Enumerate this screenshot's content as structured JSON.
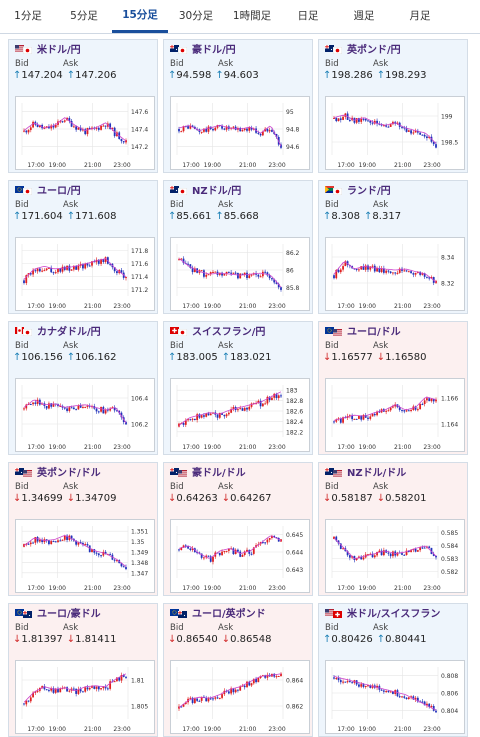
{
  "tabs": [
    {
      "label": "1分足",
      "active": false
    },
    {
      "label": "5分足",
      "active": false
    },
    {
      "label": "15分足",
      "active": true
    },
    {
      "label": "30分足",
      "active": false
    },
    {
      "label": "1時間足",
      "active": false
    },
    {
      "label": "日足",
      "active": false
    },
    {
      "label": "週足",
      "active": false
    },
    {
      "label": "月足",
      "active": false
    }
  ],
  "labels": {
    "bid": "Bid",
    "ask": "Ask"
  },
  "x_ticks": [
    "17:00",
    "19:00",
    "21:00",
    "23:00"
  ],
  "colors": {
    "up": "#1a7fb5",
    "down": "#d12b2b",
    "bull": "#e02020",
    "bear": "#2233bb",
    "ma": "#cc44cc"
  },
  "cards": [
    {
      "pair": "米ドル/円",
      "flag": "us-jp",
      "dir": "up",
      "bid": "147.204",
      "ask": "147.206",
      "yticks": [
        "147.6",
        "147.4",
        "147.2"
      ]
    },
    {
      "pair": "豪ドル/円",
      "flag": "au-jp",
      "dir": "up",
      "bid": "94.598",
      "ask": "94.603",
      "yticks": [
        "95",
        "94.8",
        "94.6"
      ]
    },
    {
      "pair": "英ポンド/円",
      "flag": "gb-jp",
      "dir": "up",
      "bid": "198.286",
      "ask": "198.293",
      "yticks": [
        "199",
        "198.5"
      ]
    },
    {
      "pair": "ユーロ/円",
      "flag": "eu-jp",
      "dir": "up",
      "bid": "171.604",
      "ask": "171.608",
      "yticks": [
        "171.8",
        "171.6",
        "171.4",
        "171.2"
      ]
    },
    {
      "pair": "NZドル/円",
      "flag": "nz-jp",
      "dir": "up",
      "bid": "85.661",
      "ask": "85.668",
      "yticks": [
        "86.2",
        "86",
        "85.8"
      ]
    },
    {
      "pair": "ランド/円",
      "flag": "za-jp",
      "dir": "up",
      "bid": "8.308",
      "ask": "8.317",
      "yticks": [
        "8.34",
        "8.32"
      ]
    },
    {
      "pair": "カナダドル/円",
      "flag": "ca-jp",
      "dir": "up",
      "bid": "106.156",
      "ask": "106.162",
      "yticks": [
        "106.4",
        "106.2"
      ]
    },
    {
      "pair": "スイスフラン/円",
      "flag": "ch-jp",
      "dir": "up",
      "bid": "183.005",
      "ask": "183.021",
      "yticks": [
        "183",
        "182.8",
        "182.6",
        "182.4",
        "182.2"
      ]
    },
    {
      "pair": "ユーロ/ドル",
      "flag": "eu-us",
      "dir": "down",
      "bid": "1.16577",
      "ask": "1.16580",
      "yticks": [
        "1.166",
        "1.164"
      ]
    },
    {
      "pair": "英ポンド/ドル",
      "flag": "gb-us",
      "dir": "down",
      "bid": "1.34699",
      "ask": "1.34709",
      "yticks": [
        "1.351",
        "1.35",
        "1.349",
        "1.348",
        "1.347"
      ]
    },
    {
      "pair": "豪ドル/ドル",
      "flag": "au-us",
      "dir": "down",
      "bid": "0.64263",
      "ask": "0.64267",
      "yticks": [
        "0.645",
        "0.644",
        "0.643"
      ]
    },
    {
      "pair": "NZドル/ドル",
      "flag": "nz-us",
      "dir": "down",
      "bid": "0.58187",
      "ask": "0.58201",
      "yticks": [
        "0.585",
        "0.584",
        "0.583",
        "0.582"
      ]
    },
    {
      "pair": "ユーロ/豪ドル",
      "flag": "eu-au",
      "dir": "down",
      "bid": "1.81397",
      "ask": "1.81411",
      "yticks": [
        "1.81",
        "1.805"
      ]
    },
    {
      "pair": "ユーロ/英ポンド",
      "flag": "eu-gb",
      "dir": "down",
      "bid": "0.86540",
      "ask": "0.86548",
      "yticks": [
        "0.864",
        "0.862"
      ]
    },
    {
      "pair": "米ドル/スイスフラン",
      "flag": "us-ch",
      "dir": "up",
      "bid": "0.80426",
      "ask": "0.80441",
      "yticks": [
        "0.808",
        "0.806",
        "0.804"
      ]
    }
  ]
}
